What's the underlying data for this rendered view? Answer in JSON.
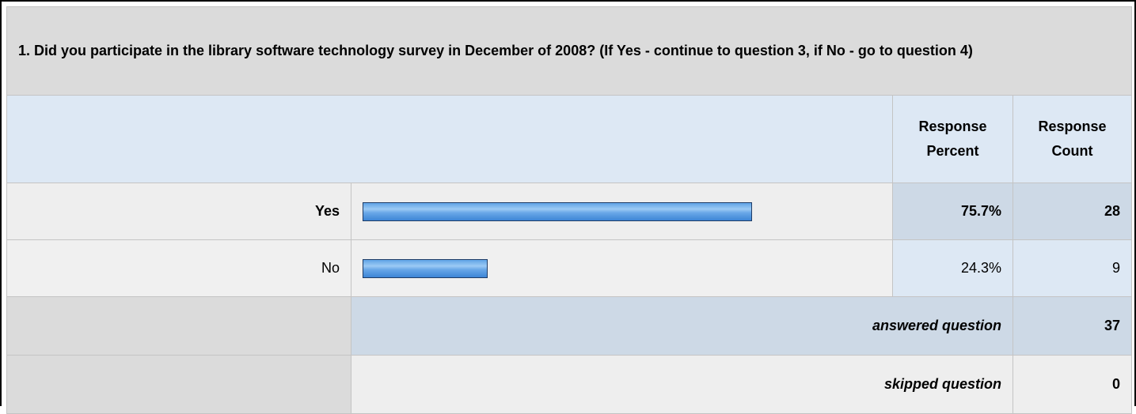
{
  "question": {
    "text": "1. Did you participate in the library software technology survey in December of 2008? (If Yes - continue to question 3, if No - go to question 4)"
  },
  "headers": {
    "percent_line1": "Response",
    "percent_line2": "Percent",
    "count_line1": "Response",
    "count_line2": "Count"
  },
  "chart_data": {
    "type": "bar",
    "orientation": "horizontal",
    "categories": [
      "Yes",
      "No"
    ],
    "series": [
      {
        "values": [
          75.7,
          24.3
        ]
      }
    ],
    "percent_labels": [
      "75.7%",
      "24.3%"
    ],
    "counts": [
      28,
      9
    ],
    "xlim": [
      0,
      100
    ],
    "colors": {
      "bar": "#6aa8e8",
      "bar_border": "#1f3c66"
    }
  },
  "rows": [
    {
      "label": "Yes",
      "percent": "75.7%",
      "count": "28"
    },
    {
      "label": "No",
      "percent": "24.3%",
      "count": "9"
    }
  ],
  "summary": {
    "answered_label": "answered question",
    "answered_value": "37",
    "skipped_label": "skipped question",
    "skipped_value": "0"
  }
}
